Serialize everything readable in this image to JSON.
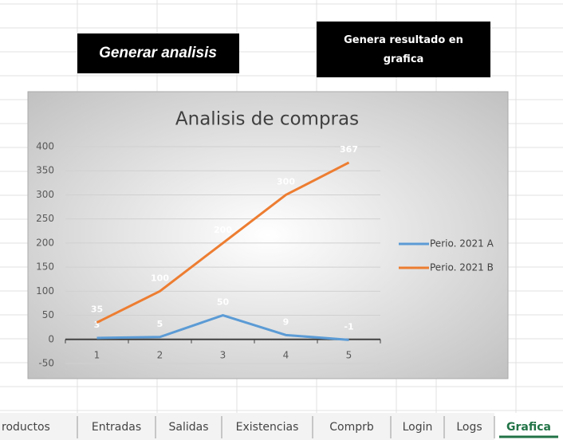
{
  "buttons": [
    "Generar analisis",
    "Genera resultado en grafica"
  ],
  "chart_data": {
    "type": "line",
    "title": "Analisis de compras",
    "categories": [
      1,
      2,
      3,
      4,
      5
    ],
    "series": [
      {
        "name": "Perio. 2021 A",
        "color": "#5b9bd5",
        "values": [
          3,
          5,
          50,
          9,
          -1
        ]
      },
      {
        "name": "Perio. 2021 B",
        "color": "#ed7d31",
        "values": [
          35,
          100,
          200,
          300,
          367
        ]
      }
    ],
    "ylim": [
      -50,
      400
    ],
    "yticks": [
      -50,
      0,
      50,
      100,
      150,
      200,
      250,
      300,
      350,
      400
    ],
    "grid": true,
    "legend": "right",
    "data_labels": true
  },
  "sheet_tabs": [
    "roductos",
    "Entradas",
    "Salidas",
    "Existencias",
    "Comprb",
    "Login",
    "Logs",
    "Grafica"
  ],
  "active_tab": 7
}
